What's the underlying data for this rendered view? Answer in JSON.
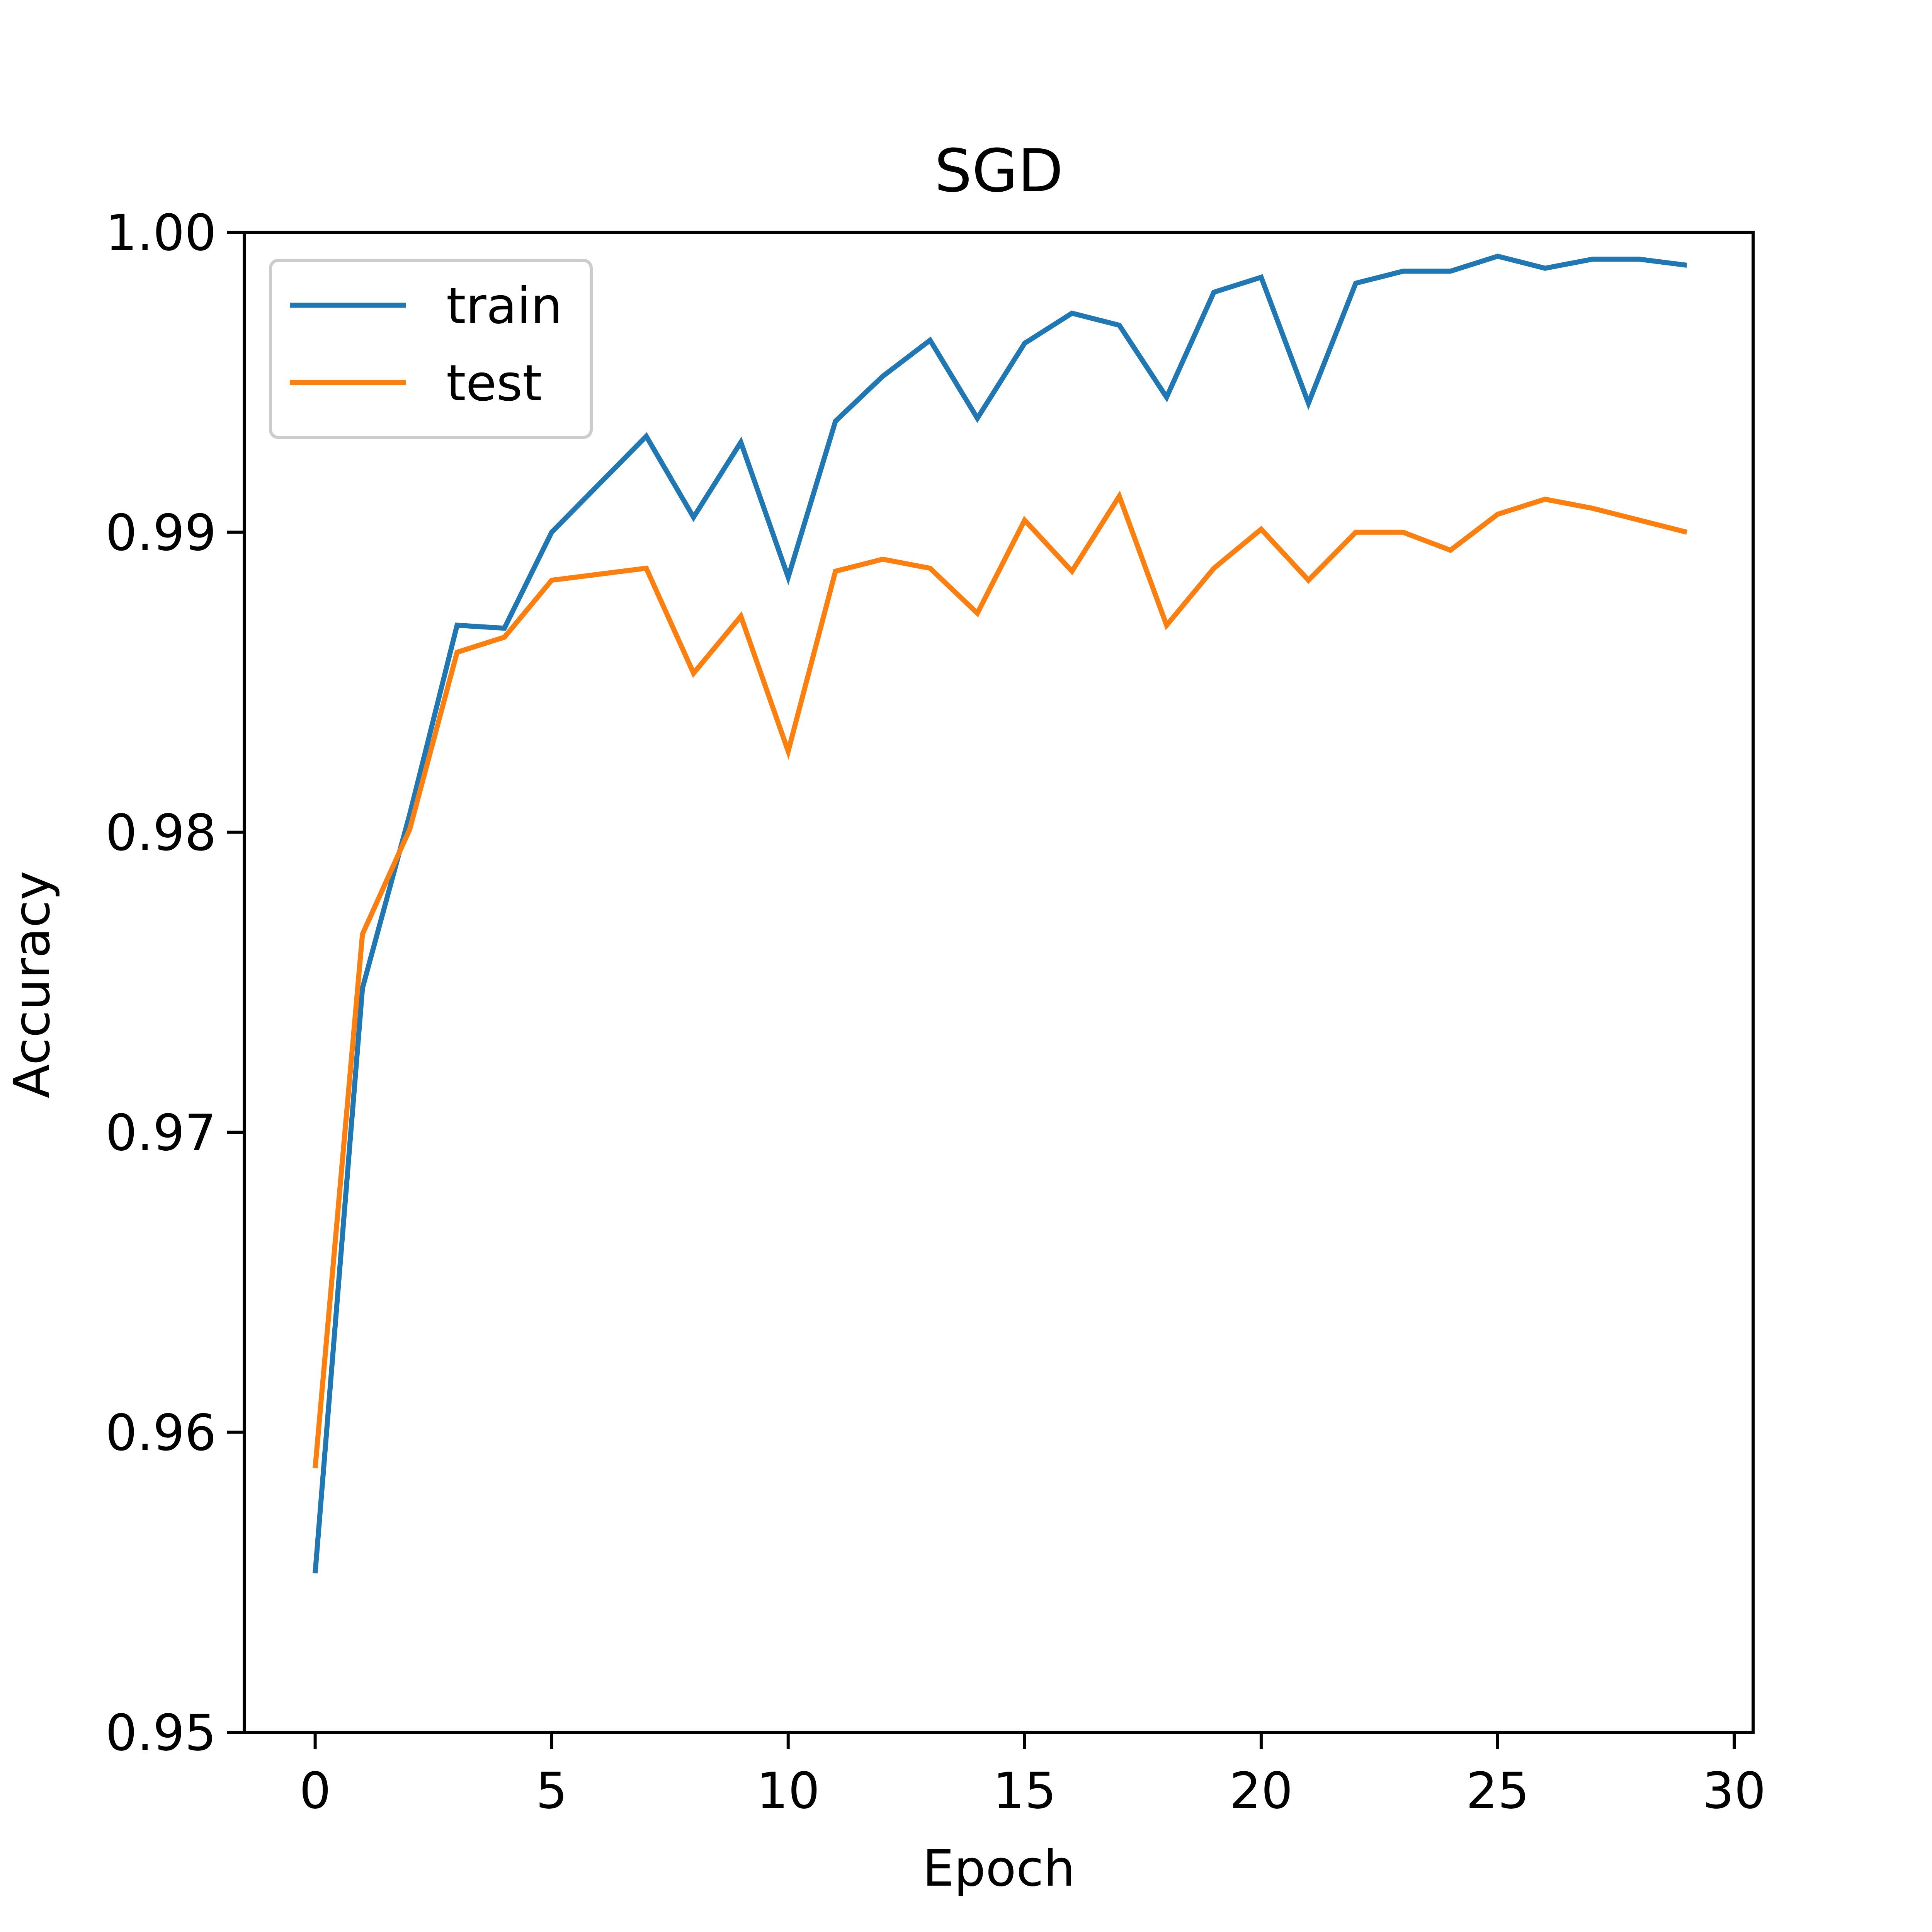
{
  "chart_data": {
    "type": "line",
    "title": "SGD",
    "xlabel": "Epoch",
    "ylabel": "Accuracy",
    "xlim": [
      -1.5,
      30.4
    ],
    "ylim": [
      0.95,
      1.0
    ],
    "grid": false,
    "legend_position": "top-left",
    "x": [
      0,
      1,
      2,
      3,
      4,
      5,
      6,
      7,
      8,
      9,
      10,
      11,
      12,
      13,
      14,
      15,
      16,
      17,
      18,
      19,
      20,
      21,
      22,
      23,
      24,
      25,
      26,
      27,
      28,
      29
    ],
    "x_ticks": [
      {
        "value": 0,
        "label": "0"
      },
      {
        "value": 5,
        "label": "5"
      },
      {
        "value": 10,
        "label": "10"
      },
      {
        "value": 15,
        "label": "15"
      },
      {
        "value": 20,
        "label": "20"
      },
      {
        "value": 25,
        "label": "25"
      },
      {
        "value": 30,
        "label": "30"
      }
    ],
    "y_ticks": [
      {
        "value": 0.95,
        "label": "0.95"
      },
      {
        "value": 0.96,
        "label": "0.96"
      },
      {
        "value": 0.97,
        "label": "0.97"
      },
      {
        "value": 0.98,
        "label": "0.98"
      },
      {
        "value": 0.99,
        "label": "0.99"
      },
      {
        "value": 1.0,
        "label": "1.00"
      }
    ],
    "series": [
      {
        "name": "train",
        "color": "#1f77b4",
        "values": [
          0.9553,
          0.9748,
          0.9806,
          0.9869,
          0.9868,
          0.99,
          0.9916,
          0.9932,
          0.9905,
          0.993,
          0.9885,
          0.9937,
          0.9952,
          0.9964,
          0.9938,
          0.9963,
          0.9973,
          0.9969,
          0.9945,
          0.998,
          0.9985,
          0.9943,
          0.9983,
          0.9987,
          0.9987,
          0.9992,
          0.9988,
          0.9991,
          0.9991,
          0.9989
        ]
      },
      {
        "name": "test",
        "color": "#ff7f0e",
        "values": [
          0.9588,
          0.9766,
          0.9801,
          0.986,
          0.9865,
          0.9884,
          0.9886,
          0.9888,
          0.9853,
          0.9872,
          0.9827,
          0.9887,
          0.9891,
          0.9888,
          0.9873,
          0.9904,
          0.9887,
          0.9912,
          0.9869,
          0.9888,
          0.9901,
          0.9884,
          0.99,
          0.99,
          0.9894,
          0.9906,
          0.9911,
          0.9908,
          0.9904,
          0.99
        ]
      }
    ]
  }
}
